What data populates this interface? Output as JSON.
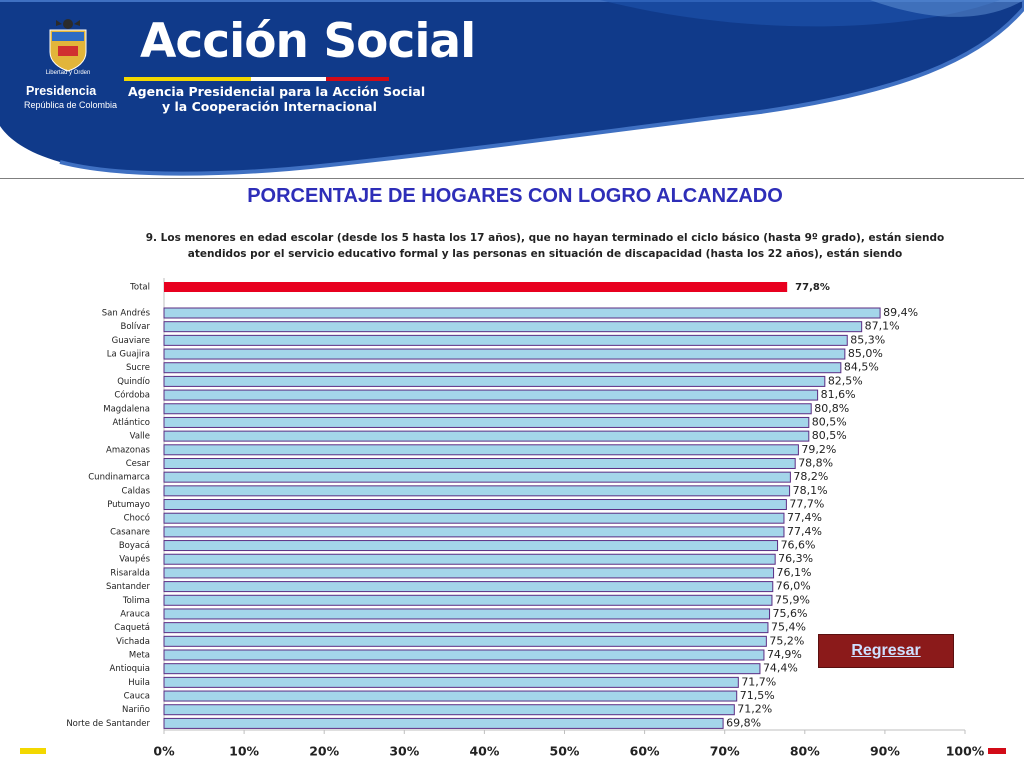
{
  "header": {
    "coat_caption": "Libertad y Orden",
    "presidencia": "Presidencia",
    "republica": "República de Colombia",
    "brand": "Acción Social",
    "tagline_1": "Agencia Presidencial para la Acción Social",
    "tagline_2": "y la Cooperación Internacional"
  },
  "page_title": "PORCENTAJE DE HOGARES CON LOGRO ALCANZADO",
  "back_button": "Regresar",
  "colors": {
    "header_blue": "#103a8a",
    "bar_fill": "#a4d6ea",
    "bar_border": "#5b2c83",
    "total_bar": "#e8001f",
    "title": "#2e2eb8"
  },
  "chart_data": {
    "type": "bar",
    "orientation": "horizontal",
    "title": "9. Los menores en edad escolar (desde los 5 hasta los 17 años), que no hayan terminado el ciclo básico (hasta 9º grado), están siendo atendidos por el servicio educativo formal y las personas en situación de discapacidad (hasta los 22 años), están siendo",
    "total": {
      "label": "Total",
      "value": 77.8,
      "value_label": "77,8%"
    },
    "categories": [
      "San Andrés",
      "Bolívar",
      "Guaviare",
      "La Guajira",
      "Sucre",
      "Quindío",
      "Córdoba",
      "Magdalena",
      "Atlántico",
      "Valle",
      "Amazonas",
      "Cesar",
      "Cundinamarca",
      "Caldas",
      "Putumayo",
      "Chocó",
      "Casanare",
      "Boyacá",
      "Vaupés",
      "Risaralda",
      "Santander",
      "Tolima",
      "Arauca",
      "Caquetá",
      "Vichada",
      "Meta",
      "Antioquia",
      "Huila",
      "Cauca",
      "Nariño",
      "Norte de Santander"
    ],
    "values": [
      89.4,
      87.1,
      85.3,
      85.0,
      84.5,
      82.5,
      81.6,
      80.8,
      80.5,
      80.5,
      79.2,
      78.8,
      78.2,
      78.1,
      77.7,
      77.4,
      77.4,
      76.6,
      76.3,
      76.1,
      76.0,
      75.9,
      75.6,
      75.4,
      75.2,
      74.9,
      74.4,
      71.7,
      71.5,
      71.2,
      69.8
    ],
    "value_labels": [
      "89,4%",
      "87,1%",
      "85,3%",
      "85,0%",
      "84,5%",
      "82,5%",
      "81,6%",
      "80,8%",
      "80,5%",
      "80,5%",
      "79,2%",
      "78,8%",
      "78,2%",
      "78,1%",
      "77,7%",
      "77,4%",
      "77,4%",
      "76,6%",
      "76,3%",
      "76,1%",
      "76,0%",
      "75,9%",
      "75,6%",
      "75,4%",
      "75,2%",
      "74,9%",
      "74,4%",
      "71,7%",
      "71,5%",
      "71,2%",
      "69,8%"
    ],
    "xlim": [
      0,
      100
    ],
    "x_ticks": [
      "0%",
      "10%",
      "20%",
      "30%",
      "40%",
      "50%",
      "60%",
      "70%",
      "80%",
      "90%",
      "100%"
    ],
    "grid": false
  }
}
